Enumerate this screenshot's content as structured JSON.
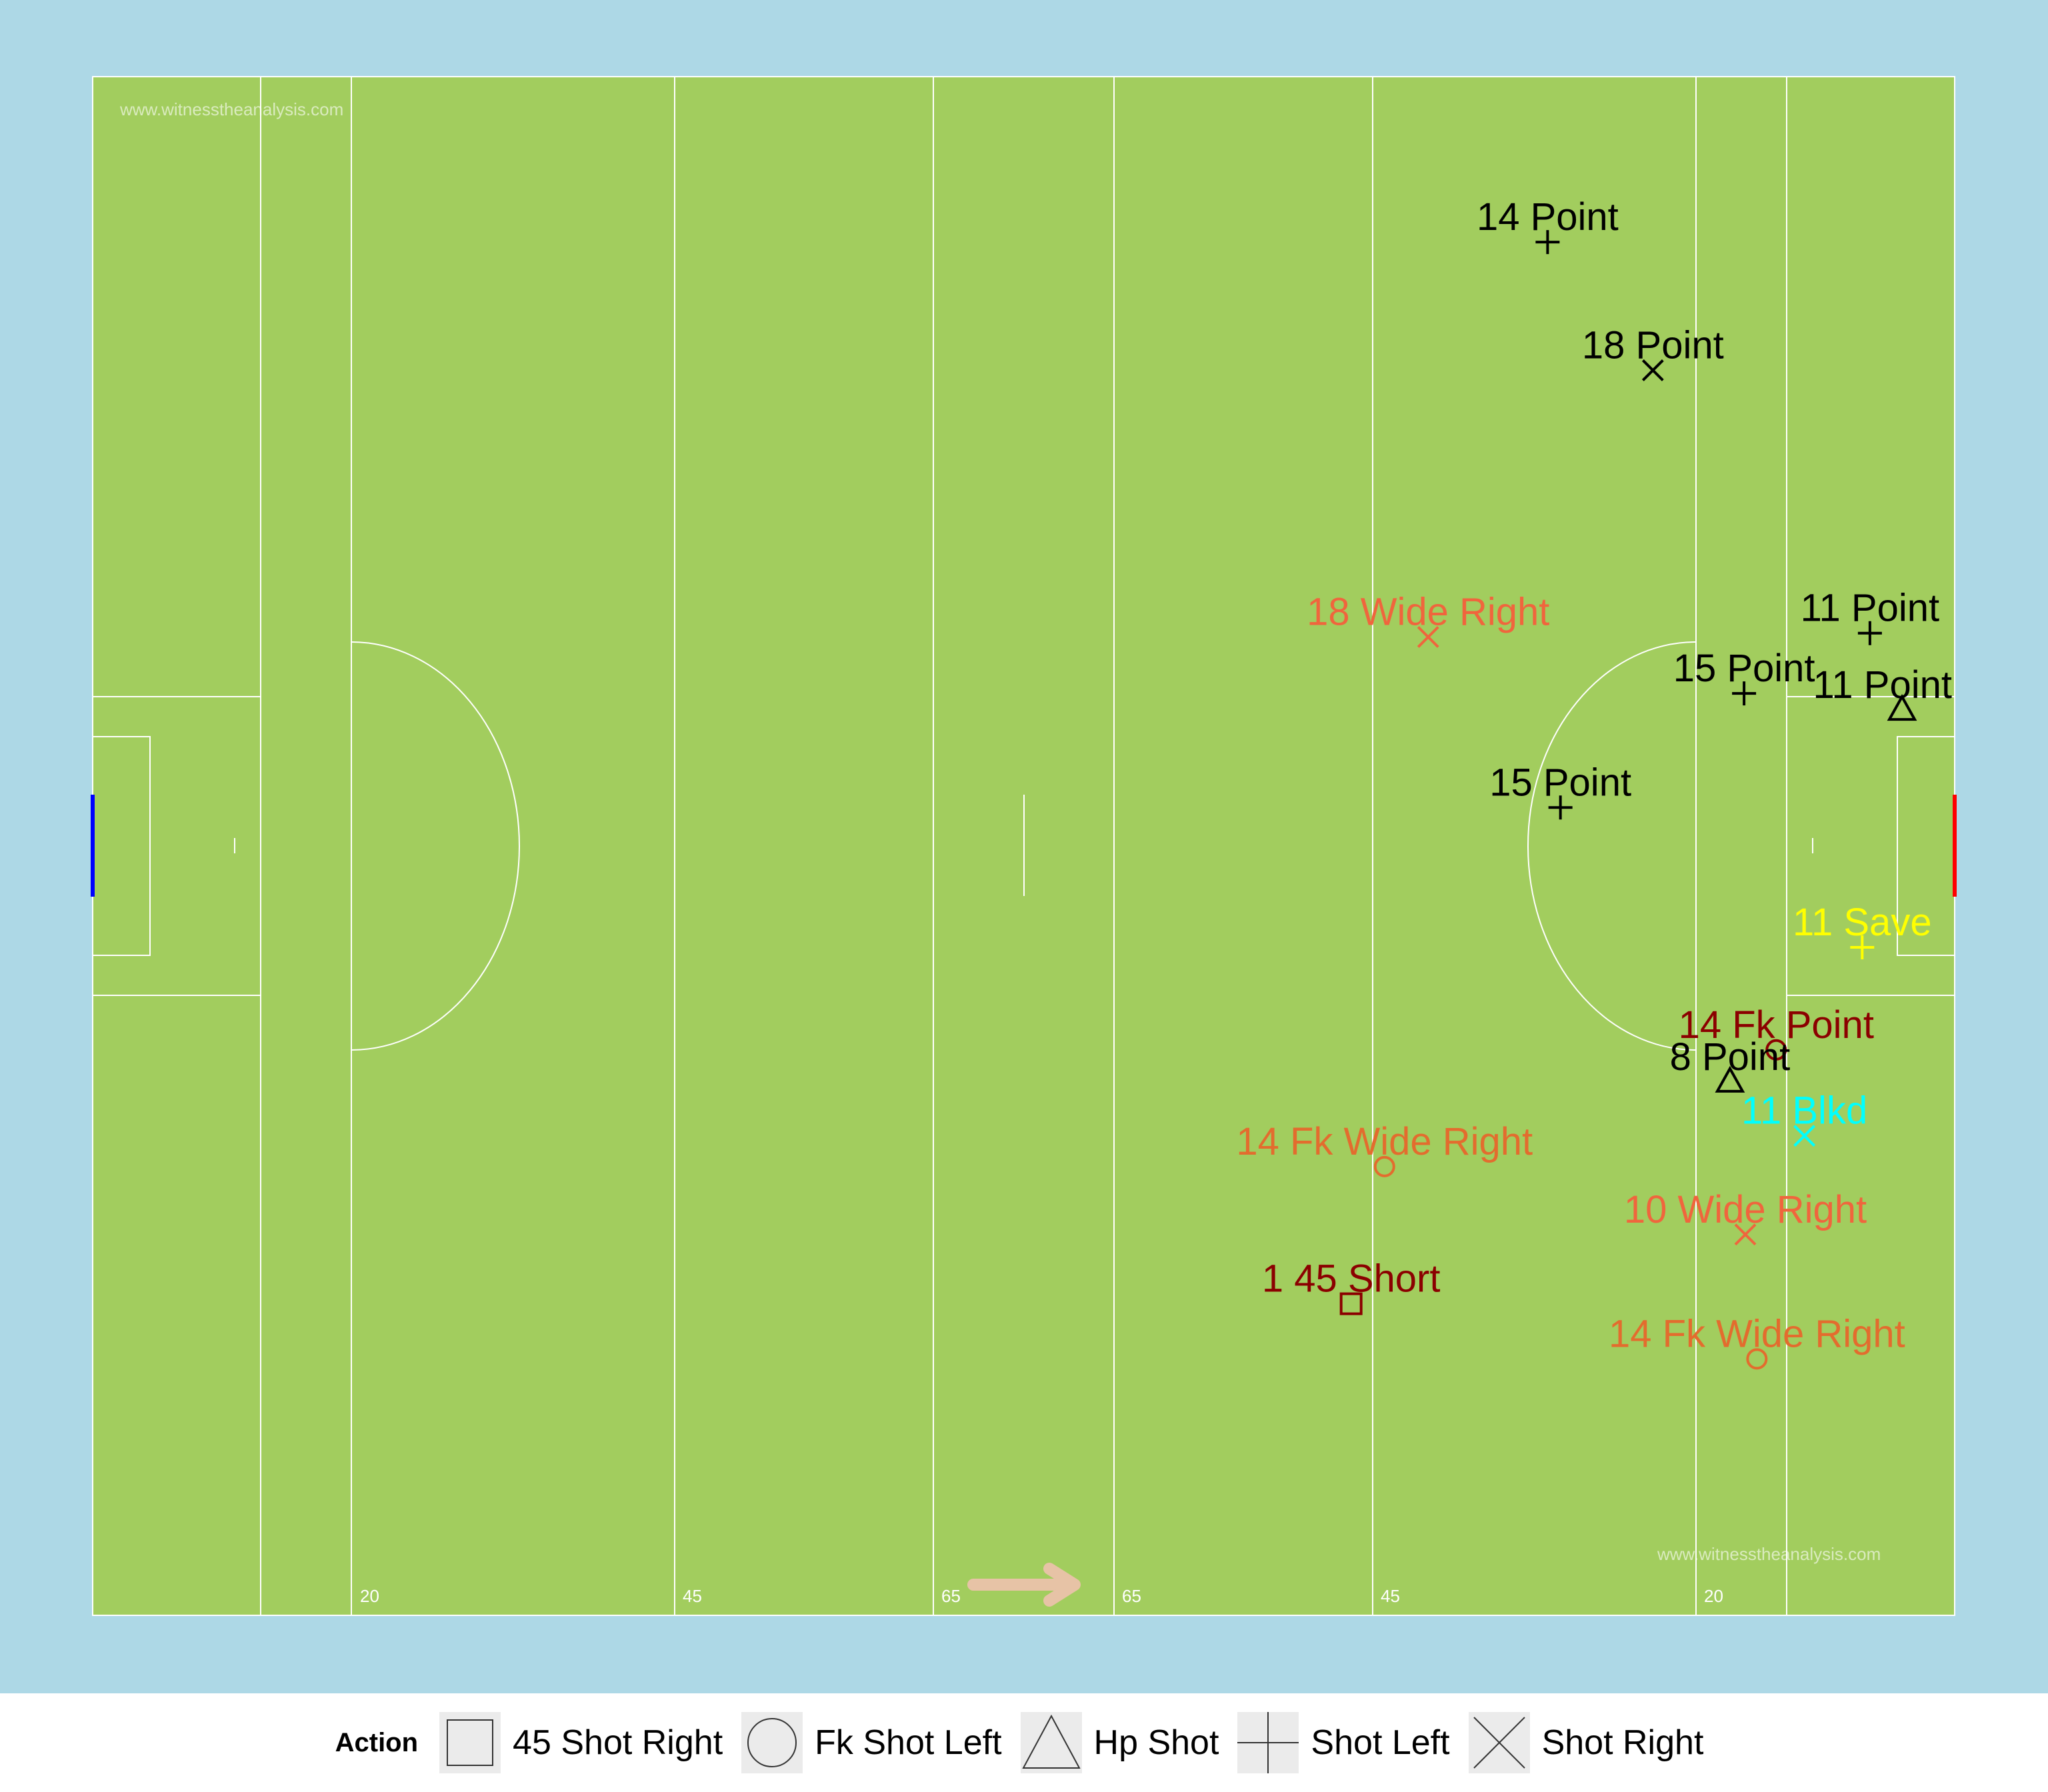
{
  "watermark": "www.witnesstheanalysis.com",
  "colors": {
    "background": "#add8e6",
    "pitch": "#a2cd5e",
    "lines": "#ffffff",
    "left_goal": "#0000ff",
    "right_goal": "#ff0000",
    "arrow": "#e7c3a6"
  },
  "field": {
    "distance_labels": [
      "20",
      "45",
      "65",
      "65",
      "45",
      "20"
    ]
  },
  "legend": {
    "title": "Action",
    "items": [
      {
        "shape": "square",
        "label": "45 Shot Right",
        "icon": "square-icon"
      },
      {
        "shape": "circle",
        "label": "Fk Shot Left",
        "icon": "circle-icon"
      },
      {
        "shape": "triangle",
        "label": "Hp Shot",
        "icon": "triangle-icon"
      },
      {
        "shape": "plus",
        "label": "Shot Left",
        "icon": "plus-icon"
      },
      {
        "shape": "cross",
        "label": "Shot Right",
        "icon": "cross-icon"
      }
    ]
  },
  "chart_data": {
    "type": "scatter",
    "xlim": [
      0,
      145
    ],
    "ylim": [
      0,
      120
    ],
    "points": [
      {
        "x": 113.3,
        "y": 107.1,
        "shape": "plus",
        "label": "14 Point",
        "color": "#000000"
      },
      {
        "x": 121.5,
        "y": 97.1,
        "shape": "cross",
        "label": "18 Point",
        "color": "#000000"
      },
      {
        "x": 104.0,
        "y": 76.3,
        "shape": "cross",
        "label": "18 Wide Right",
        "color": "#f0653d"
      },
      {
        "x": 138.4,
        "y": 76.6,
        "shape": "plus",
        "label": "11 Point",
        "color": "#000000"
      },
      {
        "x": 128.6,
        "y": 71.9,
        "shape": "plus",
        "label": "15 Point",
        "color": "#000000"
      },
      {
        "x": 140.9,
        "y": 70.6,
        "shape": "triangle",
        "label": "11 Point",
        "color": "#000000"
      },
      {
        "x": 114.3,
        "y": 63.0,
        "shape": "plus",
        "label": "15 Point",
        "color": "#000000"
      },
      {
        "x": 137.8,
        "y": 52.1,
        "shape": "plus",
        "label": "11 Save",
        "color": "#ffff00"
      },
      {
        "x": 131.1,
        "y": 44.1,
        "shape": "circle",
        "label": "14 Fk Point",
        "color": "#8b0000"
      },
      {
        "x": 127.5,
        "y": 41.6,
        "shape": "triangle",
        "label": "8 Point",
        "color": "#000000"
      },
      {
        "x": 133.3,
        "y": 37.4,
        "shape": "cross",
        "label": "11 Blkd",
        "color": "#00ffff"
      },
      {
        "x": 100.6,
        "y": 35.0,
        "shape": "circle",
        "label": "14 Fk Wide Right",
        "color": "#e36c2e"
      },
      {
        "x": 128.7,
        "y": 29.7,
        "shape": "cross",
        "label": "10 Wide Right",
        "color": "#f0653d"
      },
      {
        "x": 98.0,
        "y": 24.3,
        "shape": "square",
        "label": "1 45 Short",
        "color": "#8b0000"
      },
      {
        "x": 129.6,
        "y": 20.0,
        "shape": "circle",
        "label": "14 Fk Wide Right",
        "color": "#e36c2e"
      }
    ]
  }
}
